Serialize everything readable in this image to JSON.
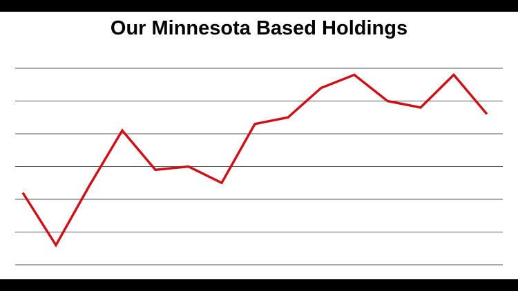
{
  "chart_data": {
    "type": "line",
    "title": "Our Minnesota Based Holdings",
    "categories": [
      null,
      null,
      null,
      null,
      null,
      null,
      null,
      null,
      null,
      null,
      null,
      null,
      null,
      null,
      null
    ],
    "series": [
      {
        "color": "#cc1118",
        "values": [
          2.2,
          0.6,
          2.4,
          4.1,
          2.9,
          3.0,
          2.5,
          4.3,
          4.5,
          5.4,
          5.8,
          5.0,
          4.8,
          5.8,
          4.6
        ]
      }
    ],
    "ylim": [
      0,
      6
    ],
    "yticks": [
      0,
      1,
      2,
      3,
      4,
      5,
      6
    ],
    "grid": true,
    "tick_labels": false
  }
}
